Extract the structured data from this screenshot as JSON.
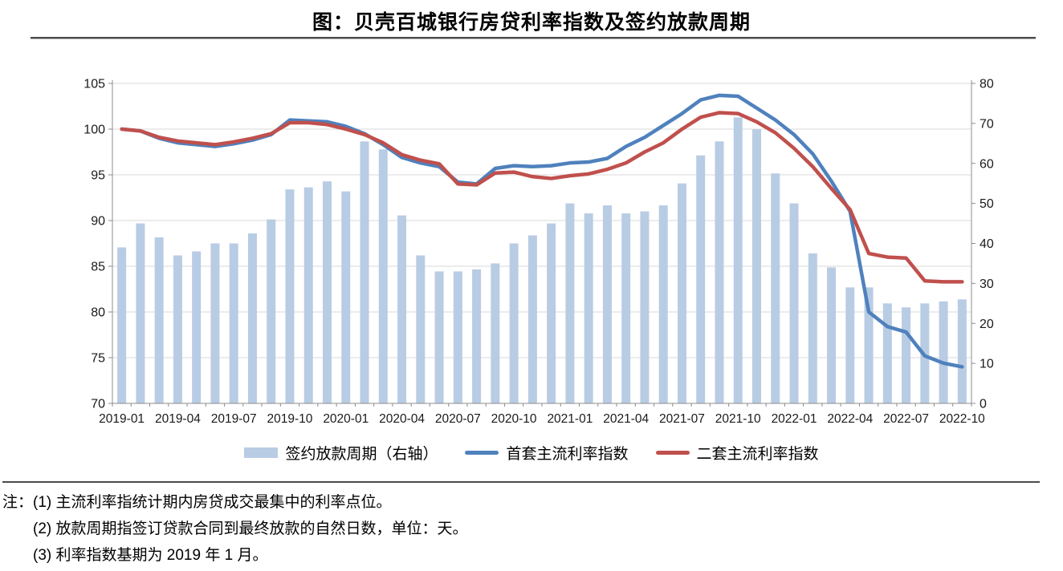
{
  "title": "图：贝壳百城银行房贷利率指数及签约放款周期",
  "legend": {
    "bar_label": "签约放款周期（右轴）",
    "line1_label": "首套主流利率指数",
    "line2_label": "二套主流利率指数"
  },
  "notes": [
    "注：(1) 主流利率指统计期内房贷成交最集中的利率点位。",
    "(2) 放款周期指签订贷款合同到最终放款的自然日数，单位：天。",
    "(3) 利率指数基期为 2019 年 1 月。"
  ],
  "colors": {
    "bar": "#b8cce4",
    "first_home_line": "#4f81bd",
    "second_home_line": "#c0504d",
    "grid": "#d9d9d9",
    "axis": "#8c8c8c",
    "text": "#1a1a1a"
  },
  "chart_data": {
    "type": "bar",
    "subtype": "combo: monthly bars (right axis) + two line series (left axis)",
    "categories": [
      "2019-01",
      "2019-02",
      "2019-03",
      "2019-04",
      "2019-05",
      "2019-06",
      "2019-07",
      "2019-08",
      "2019-09",
      "2019-10",
      "2019-11",
      "2019-12",
      "2020-01",
      "2020-02",
      "2020-03",
      "2020-04",
      "2020-05",
      "2020-06",
      "2020-07",
      "2020-08",
      "2020-09",
      "2020-10",
      "2020-11",
      "2020-12",
      "2021-01",
      "2021-02",
      "2021-03",
      "2021-04",
      "2021-05",
      "2021-06",
      "2021-07",
      "2021-08",
      "2021-09",
      "2021-10",
      "2021-11",
      "2021-12",
      "2022-01",
      "2022-02",
      "2022-03",
      "2022-04",
      "2022-05",
      "2022-06",
      "2022-07",
      "2022-08",
      "2022-09",
      "2022-10"
    ],
    "x_tick_labels": [
      "2019-01",
      "2019-04",
      "2019-07",
      "2019-10",
      "2020-01",
      "2020-04",
      "2020-07",
      "2020-10",
      "2021-01",
      "2021-04",
      "2021-07",
      "2021-10",
      "2022-01",
      "2022-04",
      "2022-07",
      "2022-10"
    ],
    "left_axis": {
      "min": 70,
      "max": 105,
      "step": 5,
      "ticks": [
        70,
        75,
        80,
        85,
        90,
        95,
        100,
        105
      ]
    },
    "right_axis": {
      "min": 0,
      "max": 80,
      "step": 10,
      "ticks": [
        0,
        10,
        20,
        30,
        40,
        50,
        60,
        70,
        80
      ]
    },
    "grid": "horizontal, at left-axis steps",
    "legend_position": "bottom-center",
    "series": [
      {
        "name": "签约放款周期（右轴）",
        "type": "bar",
        "axis": "right",
        "color": "#b8cce4",
        "values": [
          39,
          45,
          41.5,
          37,
          38,
          40,
          40,
          42.5,
          46,
          53.5,
          54,
          55.5,
          53,
          65.5,
          63.5,
          47,
          37,
          33,
          33,
          33.5,
          35,
          40,
          42,
          45,
          50,
          47.5,
          49.5,
          47.5,
          48,
          49.5,
          55,
          62,
          65.5,
          71.5,
          68.5,
          57.5,
          50,
          37.5,
          34,
          29,
          29,
          25,
          24,
          25,
          25.5,
          26
        ]
      },
      {
        "name": "首套主流利率指数",
        "type": "line",
        "axis": "left",
        "color": "#4f81bd",
        "values": [
          100,
          99.8,
          99,
          98.5,
          98.3,
          98.1,
          98.4,
          98.8,
          99.4,
          101,
          100.9,
          100.8,
          100.3,
          99.5,
          98.3,
          96.9,
          96.3,
          95.9,
          94.2,
          94,
          95.7,
          96,
          95.9,
          96,
          96.3,
          96.4,
          96.8,
          98.1,
          99.1,
          100.4,
          101.7,
          103.2,
          103.7,
          103.6,
          102.3,
          101,
          99.4,
          97.3,
          94.3,
          91,
          80,
          78.4,
          77.8,
          75.2,
          74.4,
          74
        ]
      },
      {
        "name": "二套主流利率指数",
        "type": "line",
        "axis": "left",
        "color": "#c0504d",
        "values": [
          100,
          99.8,
          99.1,
          98.7,
          98.5,
          98.3,
          98.6,
          99,
          99.5,
          100.7,
          100.7,
          100.5,
          100,
          99.4,
          98.5,
          97.2,
          96.6,
          96.2,
          94,
          93.9,
          95.2,
          95.3,
          94.8,
          94.6,
          94.9,
          95.1,
          95.6,
          96.3,
          97.5,
          98.5,
          100,
          101.3,
          101.8,
          101.7,
          100.8,
          99.6,
          97.9,
          95.9,
          93.5,
          91.2,
          86.4,
          86,
          85.9,
          83.4,
          83.3,
          83.3
        ]
      }
    ]
  }
}
